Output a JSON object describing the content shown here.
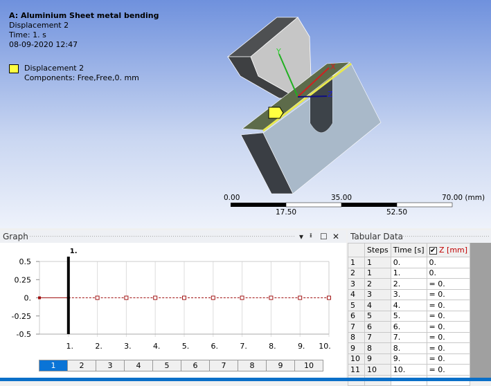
{
  "viewport": {
    "title": "A: Aluminium Sheet metal bending",
    "subtitle": "Displacement 2",
    "time": "Time: 1. s",
    "date": "08-09-2020 12:47",
    "legend": {
      "label": "Displacement 2",
      "components": "Components: Free,Free,0. mm",
      "color": "#ffff40"
    },
    "axes": {
      "x": "X",
      "y": "Y",
      "z": "Z"
    },
    "scale": {
      "labels_top": [
        "0.00",
        "35.00",
        "70.00 (mm)"
      ],
      "labels_bottom": [
        "17.50",
        "52.50"
      ]
    }
  },
  "graph": {
    "title": "Graph",
    "controls": [
      "▾",
      "📌",
      "☐",
      "✕"
    ],
    "marker_label": "1.",
    "y_ticks": [
      "0.5",
      "0.25",
      "0.",
      "-0.25",
      "-0.5"
    ],
    "x_ticks": [
      "1.",
      "2.",
      "3.",
      "4.",
      "5.",
      "6.",
      "7.",
      "8.",
      "9.",
      "10."
    ],
    "step_tabs": [
      "1",
      "2",
      "3",
      "4",
      "5",
      "6",
      "7",
      "8",
      "9",
      "10"
    ],
    "active_tab": "1"
  },
  "chart_data": {
    "type": "line",
    "x": [
      0,
      1,
      2,
      3,
      4,
      5,
      6,
      7,
      8,
      9,
      10
    ],
    "y": [
      0,
      0,
      0,
      0,
      0,
      0,
      0,
      0,
      0,
      0,
      0
    ],
    "xlim": [
      0,
      10
    ],
    "ylim": [
      -0.5,
      0.5
    ],
    "current_time": 1,
    "grid": true,
    "series_color": "#a01010"
  },
  "tabular": {
    "title": "Tabular Data",
    "headers": [
      "Steps",
      "Time [s]",
      "Z [mm]"
    ],
    "rows": [
      [
        "1",
        "1",
        "0.",
        "0."
      ],
      [
        "2",
        "1",
        "1.",
        "0."
      ],
      [
        "3",
        "2",
        "2.",
        "= 0."
      ],
      [
        "4",
        "3",
        "3.",
        "= 0."
      ],
      [
        "5",
        "4",
        "4.",
        "= 0."
      ],
      [
        "6",
        "5",
        "5.",
        "= 0."
      ],
      [
        "7",
        "6",
        "6.",
        "= 0."
      ],
      [
        "8",
        "7",
        "7.",
        "= 0."
      ],
      [
        "9",
        "8",
        "8.",
        "= 0."
      ],
      [
        "10",
        "9",
        "9.",
        "= 0."
      ],
      [
        "11",
        "10",
        "10.",
        "= 0."
      ]
    ],
    "new_row": "*"
  }
}
